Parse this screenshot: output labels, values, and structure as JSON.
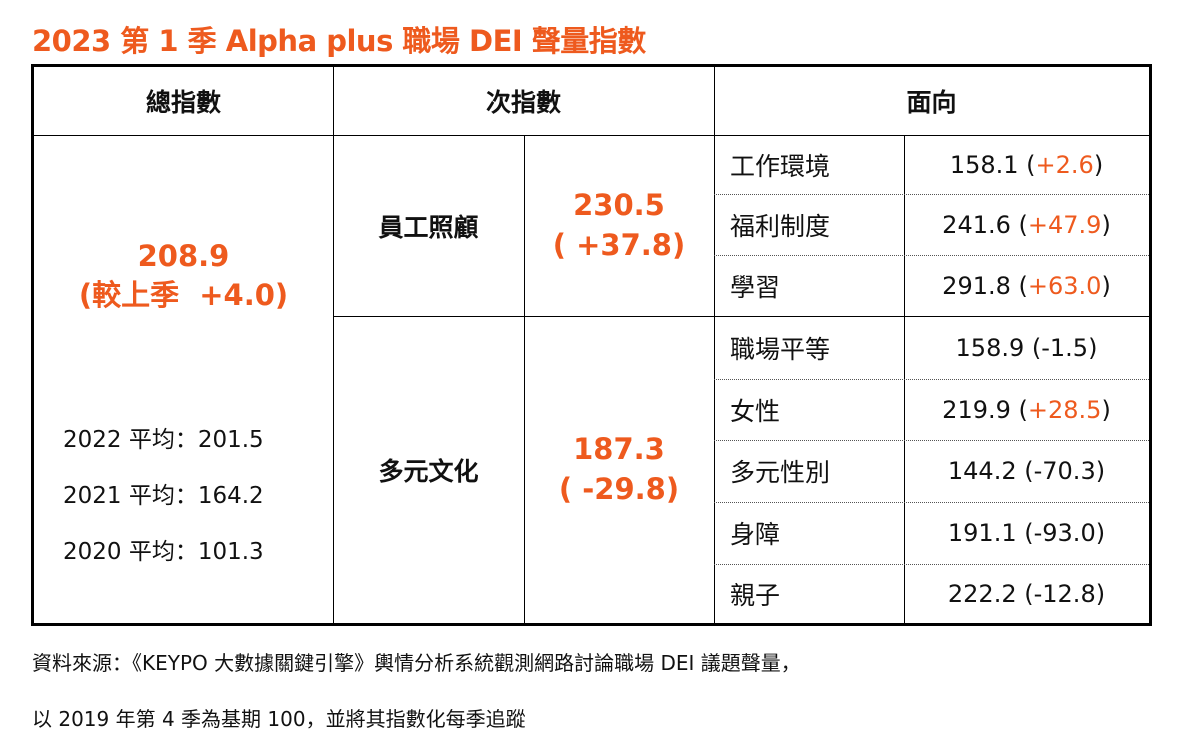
{
  "title": "2023 第 1 季 Alpha plus 職場 DEI 聲量指數",
  "headers": {
    "total": "總指數",
    "sub": "次指數",
    "aspect": "面向"
  },
  "total": {
    "value": "208.9",
    "change": "(較上季  +4.0)",
    "averages": [
      "2022 平均：201.5",
      "2021 平均：164.2",
      "2020 平均：101.3"
    ]
  },
  "groups": [
    {
      "name": "員工照顧",
      "value": "230.5",
      "change": "( +37.8)",
      "aspects": [
        {
          "name": "工作環境",
          "value": "158.1",
          "change": "+2.6",
          "up": true
        },
        {
          "name": "福利制度",
          "value": "241.6",
          "change": "+47.9",
          "up": true
        },
        {
          "name": "學習",
          "value": "291.8",
          "change": "+63.0",
          "up": true
        }
      ]
    },
    {
      "name": "多元文化",
      "value": "187.3",
      "change": "( -29.8)",
      "aspects": [
        {
          "name": "職場平等",
          "value": "158.9",
          "change": "-1.5",
          "up": false
        },
        {
          "name": "女性",
          "value": "219.9",
          "change": "+28.5",
          "up": true
        },
        {
          "name": "多元性別",
          "value": "144.2",
          "change": "-70.3",
          "up": false
        },
        {
          "name": "身障",
          "value": "191.1",
          "change": "-93.0",
          "up": false
        },
        {
          "name": "親子",
          "value": "222.2",
          "change": "-12.8",
          "up": false
        }
      ]
    }
  ],
  "footer": [
    "資料來源：《KEYPO 大數據關鍵引擎》輿情分析系統觀測網路討論職場 DEI 議題聲量，",
    "以 2019 年第 4 季為基期 100，並將其指數化每季追蹤"
  ],
  "colors": {
    "accent": "#EE5A1E"
  }
}
